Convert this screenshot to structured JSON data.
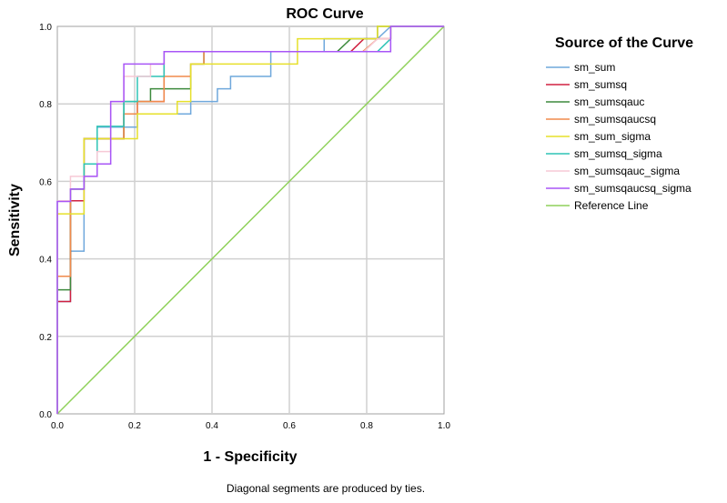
{
  "chart_data": {
    "type": "line",
    "title": "ROC Curve",
    "xlabel": "1 - Specificity",
    "ylabel": "Sensitivity",
    "xlim": [
      0.0,
      1.0
    ],
    "ylim": [
      0.0,
      1.0
    ],
    "x_ticks": [
      "0.0",
      "0.2",
      "0.4",
      "0.6",
      "0.8",
      "1.0"
    ],
    "y_ticks": [
      "0.0",
      "0.2",
      "0.4",
      "0.6",
      "0.8",
      "1.0"
    ],
    "grid": true,
    "legend_title": "Source of the Curve",
    "legend_position": "right",
    "note": "Diagonal segments are produced by ties.",
    "series": [
      {
        "name": "sm_sum",
        "color": "#6fa8dc",
        "points": [
          [
            0,
            0
          ],
          [
            0,
            0.29
          ],
          [
            0.034,
            0.29
          ],
          [
            0.034,
            0.42
          ],
          [
            0.069,
            0.42
          ],
          [
            0.069,
            0.71
          ],
          [
            0.103,
            0.71
          ],
          [
            0.103,
            0.74
          ],
          [
            0.207,
            0.74
          ],
          [
            0.207,
            0.774
          ],
          [
            0.345,
            0.774
          ],
          [
            0.345,
            0.806
          ],
          [
            0.414,
            0.806
          ],
          [
            0.414,
            0.839
          ],
          [
            0.448,
            0.839
          ],
          [
            0.448,
            0.871
          ],
          [
            0.552,
            0.871
          ],
          [
            0.552,
            0.935
          ],
          [
            0.69,
            0.935
          ],
          [
            0.69,
            0.968
          ],
          [
            0.828,
            0.968
          ],
          [
            0.862,
            1.0
          ],
          [
            1.0,
            1.0
          ]
        ]
      },
      {
        "name": "sm_sumsq",
        "color": "#d02040",
        "points": [
          [
            0,
            0
          ],
          [
            0,
            0.29
          ],
          [
            0.034,
            0.29
          ],
          [
            0.034,
            0.55
          ],
          [
            0.069,
            0.55
          ],
          [
            0.069,
            0.71
          ],
          [
            0.172,
            0.71
          ],
          [
            0.172,
            0.774
          ],
          [
            0.207,
            0.774
          ],
          [
            0.207,
            0.806
          ],
          [
            0.276,
            0.806
          ],
          [
            0.276,
            0.935
          ],
          [
            0.379,
            0.935
          ],
          [
            0.759,
            0.935
          ],
          [
            0.793,
            0.968
          ],
          [
            0.862,
            0.968
          ],
          [
            0.862,
            1.0
          ],
          [
            1.0,
            1.0
          ]
        ]
      },
      {
        "name": "sm_sumsqauc",
        "color": "#3d8a3d",
        "points": [
          [
            0,
            0
          ],
          [
            0,
            0.32
          ],
          [
            0.034,
            0.32
          ],
          [
            0.034,
            0.58
          ],
          [
            0.069,
            0.58
          ],
          [
            0.069,
            0.71
          ],
          [
            0.172,
            0.71
          ],
          [
            0.172,
            0.806
          ],
          [
            0.241,
            0.806
          ],
          [
            0.241,
            0.839
          ],
          [
            0.345,
            0.839
          ],
          [
            0.345,
            0.903
          ],
          [
            0.379,
            0.903
          ],
          [
            0.379,
            0.935
          ],
          [
            0.724,
            0.935
          ],
          [
            0.759,
            0.968
          ],
          [
            0.828,
            0.968
          ],
          [
            0.828,
            1.0
          ],
          [
            1.0,
            1.0
          ]
        ]
      },
      {
        "name": "sm_sumsqaucsq",
        "color": "#f08a4b",
        "points": [
          [
            0,
            0
          ],
          [
            0,
            0.355
          ],
          [
            0.034,
            0.355
          ],
          [
            0.034,
            0.58
          ],
          [
            0.069,
            0.58
          ],
          [
            0.069,
            0.71
          ],
          [
            0.172,
            0.71
          ],
          [
            0.172,
            0.774
          ],
          [
            0.207,
            0.774
          ],
          [
            0.207,
            0.806
          ],
          [
            0.276,
            0.806
          ],
          [
            0.276,
            0.871
          ],
          [
            0.345,
            0.871
          ],
          [
            0.345,
            0.903
          ],
          [
            0.379,
            0.903
          ],
          [
            0.379,
            0.935
          ],
          [
            0.79,
            0.935
          ],
          [
            0.828,
            0.968
          ],
          [
            0.862,
            0.968
          ],
          [
            0.862,
            1.0
          ],
          [
            1.0,
            1.0
          ]
        ]
      },
      {
        "name": "sm_sum_sigma",
        "color": "#e6e02a",
        "points": [
          [
            0,
            0
          ],
          [
            0,
            0.516
          ],
          [
            0.069,
            0.516
          ],
          [
            0.069,
            0.71
          ],
          [
            0.207,
            0.71
          ],
          [
            0.207,
            0.774
          ],
          [
            0.31,
            0.774
          ],
          [
            0.31,
            0.806
          ],
          [
            0.345,
            0.806
          ],
          [
            0.345,
            0.903
          ],
          [
            0.621,
            0.903
          ],
          [
            0.621,
            0.968
          ],
          [
            0.828,
            0.968
          ],
          [
            0.828,
            1.0
          ],
          [
            1.0,
            1.0
          ]
        ]
      },
      {
        "name": "sm_sumsq_sigma",
        "color": "#2ec4b6",
        "points": [
          [
            0,
            0
          ],
          [
            0,
            0.55
          ],
          [
            0.034,
            0.55
          ],
          [
            0.034,
            0.58
          ],
          [
            0.069,
            0.58
          ],
          [
            0.069,
            0.645
          ],
          [
            0.103,
            0.645
          ],
          [
            0.103,
            0.742
          ],
          [
            0.172,
            0.742
          ],
          [
            0.172,
            0.806
          ],
          [
            0.207,
            0.806
          ],
          [
            0.207,
            0.871
          ],
          [
            0.276,
            0.871
          ],
          [
            0.276,
            0.935
          ],
          [
            0.828,
            0.935
          ],
          [
            0.862,
            0.968
          ],
          [
            0.862,
            1.0
          ],
          [
            1.0,
            1.0
          ]
        ]
      },
      {
        "name": "sm_sumsqauc_sigma",
        "color": "#f7c9d6",
        "points": [
          [
            0,
            0
          ],
          [
            0,
            0.55
          ],
          [
            0.034,
            0.55
          ],
          [
            0.034,
            0.613
          ],
          [
            0.103,
            0.613
          ],
          [
            0.103,
            0.677
          ],
          [
            0.138,
            0.677
          ],
          [
            0.138,
            0.806
          ],
          [
            0.172,
            0.806
          ],
          [
            0.172,
            0.871
          ],
          [
            0.241,
            0.871
          ],
          [
            0.241,
            0.903
          ],
          [
            0.276,
            0.903
          ],
          [
            0.276,
            0.935
          ],
          [
            0.793,
            0.935
          ],
          [
            0.828,
            0.968
          ],
          [
            0.862,
            0.968
          ],
          [
            0.862,
            1.0
          ],
          [
            1.0,
            1.0
          ]
        ]
      },
      {
        "name": "sm_sumsqaucsq_sigma",
        "color": "#a855f7",
        "points": [
          [
            0,
            0
          ],
          [
            0,
            0.548
          ],
          [
            0.034,
            0.548
          ],
          [
            0.034,
            0.58
          ],
          [
            0.069,
            0.58
          ],
          [
            0.069,
            0.613
          ],
          [
            0.103,
            0.613
          ],
          [
            0.103,
            0.645
          ],
          [
            0.138,
            0.645
          ],
          [
            0.138,
            0.806
          ],
          [
            0.172,
            0.806
          ],
          [
            0.172,
            0.903
          ],
          [
            0.276,
            0.903
          ],
          [
            0.276,
            0.935
          ],
          [
            0.862,
            0.935
          ],
          [
            0.862,
            1.0
          ],
          [
            1.0,
            1.0
          ]
        ]
      },
      {
        "name": "Reference Line",
        "color": "#8fd15a",
        "points": [
          [
            0,
            0
          ],
          [
            1,
            1
          ]
        ]
      }
    ]
  }
}
